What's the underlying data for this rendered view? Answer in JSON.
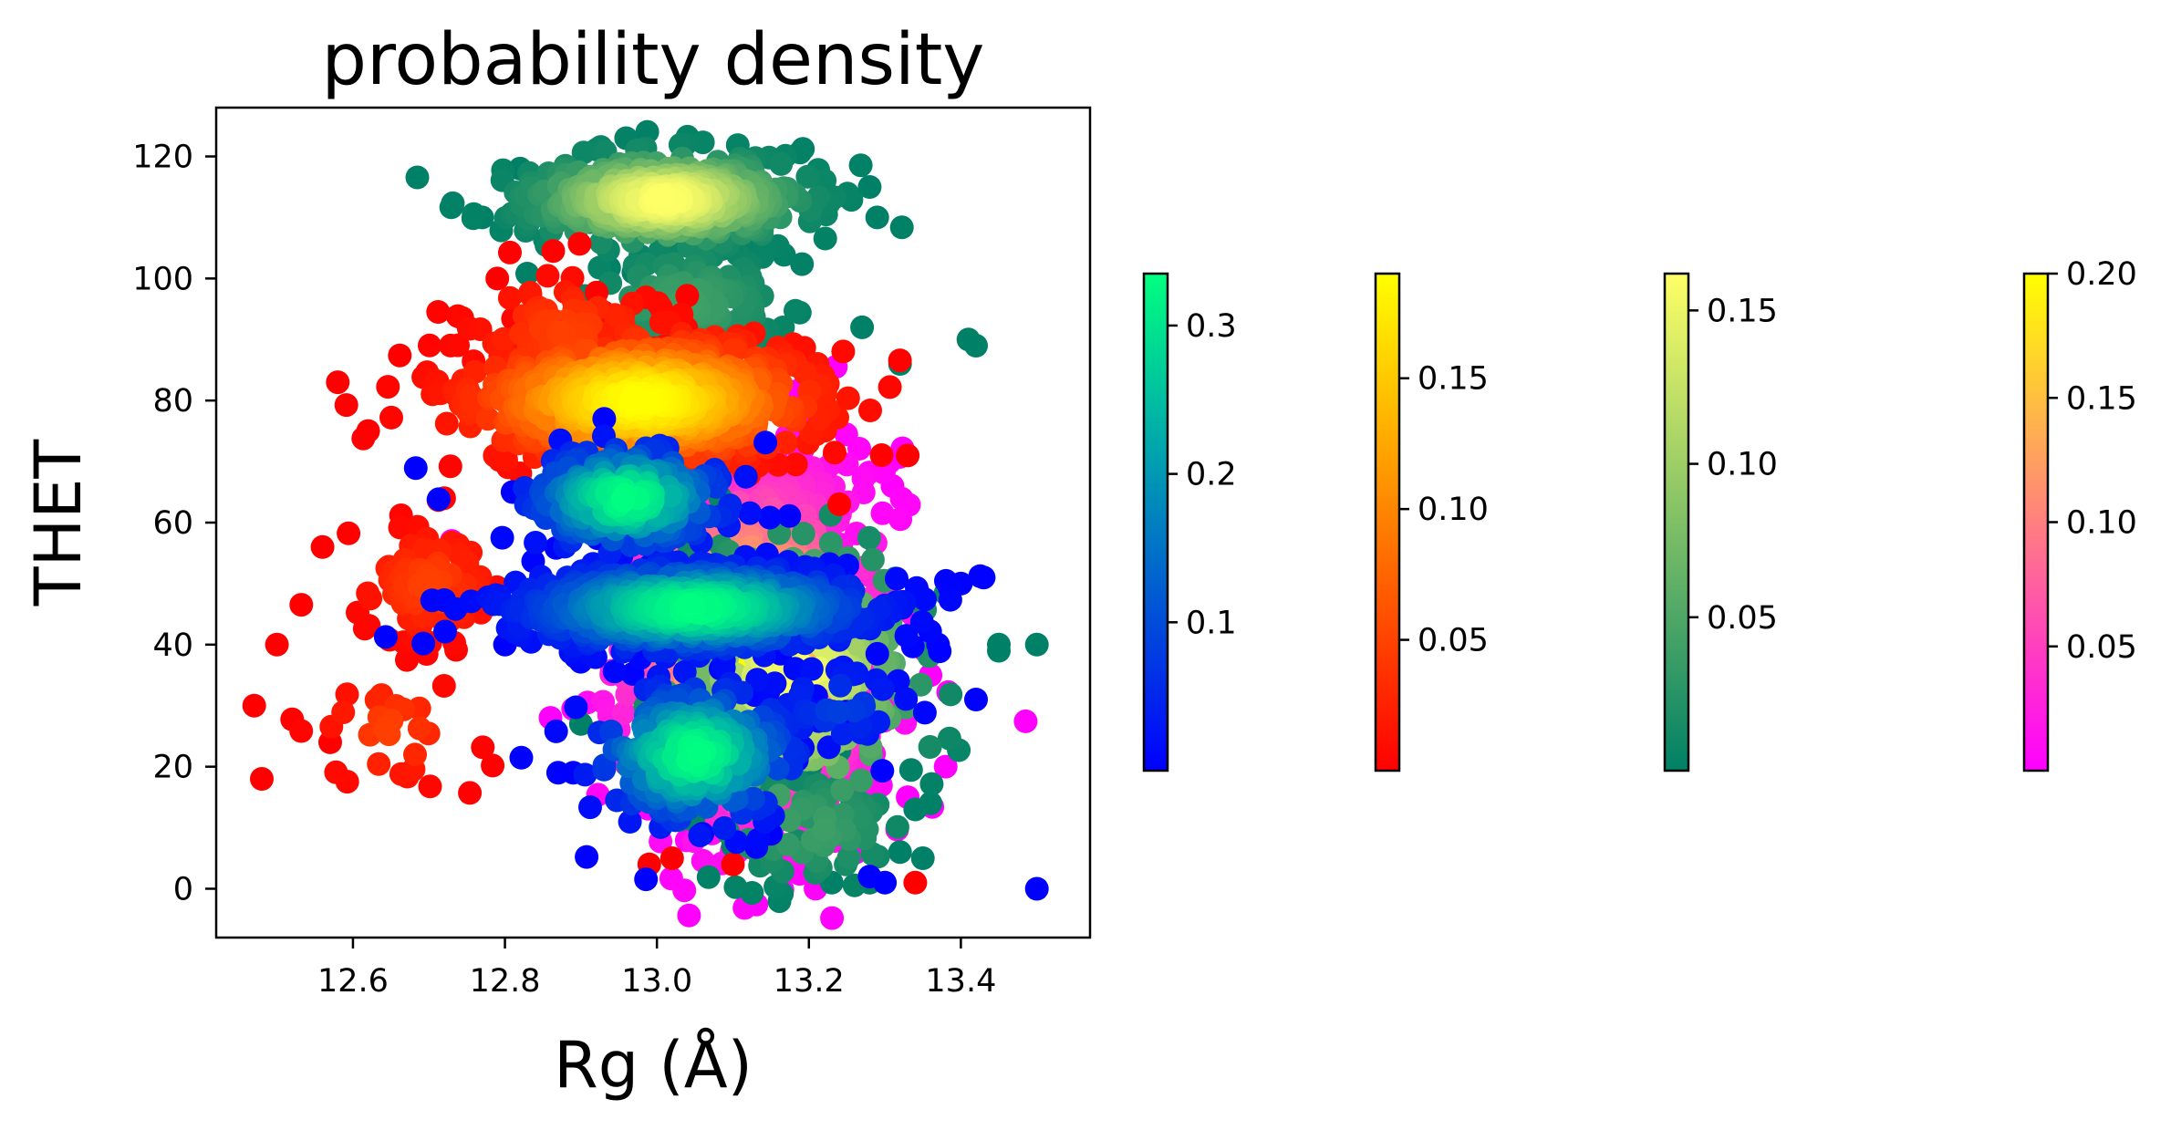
{
  "chart_data": {
    "type": "scatter",
    "title": "probability density",
    "xlabel": "Rg (Å)",
    "ylabel": "THET",
    "xlim": [
      12.42,
      13.57
    ],
    "ylim": [
      -8,
      128
    ],
    "xticks": [
      12.6,
      12.8,
      13.0,
      13.2,
      13.4
    ],
    "xtick_labels": [
      "12.6",
      "12.8",
      "13.0",
      "13.2",
      "13.4"
    ],
    "yticks": [
      0,
      20,
      40,
      60,
      80,
      100,
      120
    ],
    "ytick_labels": [
      "0",
      "20",
      "40",
      "60",
      "80",
      "100",
      "120"
    ],
    "grid": false,
    "series": [
      {
        "colormap": "spring",
        "colors": [
          "#ff00ff",
          "#ffff00"
        ],
        "clusters": [
          {
            "cx": 13.12,
            "cy": 40,
            "sx": 0.09,
            "sy": 15,
            "n": 520
          },
          {
            "cx": 13.15,
            "cy": 62,
            "sx": 0.07,
            "sy": 7,
            "n": 170
          },
          {
            "cx": 13.16,
            "cy": 20,
            "sx": 0.07,
            "sy": 8,
            "n": 170
          }
        ],
        "outliers": [
          [
            12.73,
            57
          ],
          [
            12.86,
            28
          ],
          [
            13.28,
            1
          ],
          [
            13.31,
            66
          ],
          [
            13.38,
            20
          ],
          [
            13.36,
            35
          ],
          [
            13.33,
            15
          ],
          [
            13.22,
            8
          ]
        ]
      },
      {
        "colormap": "summer",
        "colors": [
          "#008066",
          "#ffff66"
        ],
        "clusters": [
          {
            "cx": 13.01,
            "cy": 113,
            "sx": 0.09,
            "sy": 3.6,
            "n": 480
          },
          {
            "cx": 13.04,
            "cy": 96,
            "sx": 0.07,
            "sy": 5,
            "n": 150
          },
          {
            "cx": 13.18,
            "cy": 35,
            "sx": 0.09,
            "sy": 12,
            "n": 240
          },
          {
            "cx": 13.2,
            "cy": 10,
            "sx": 0.07,
            "sy": 5,
            "n": 70
          }
        ],
        "outliers": [
          [
            12.77,
            110
          ],
          [
            12.82,
            118
          ],
          [
            13.28,
            115
          ],
          [
            13.29,
            110
          ],
          [
            13.27,
            92
          ],
          [
            13.32,
            86
          ],
          [
            13.41,
            90
          ],
          [
            13.42,
            89
          ],
          [
            13.45,
            40
          ],
          [
            13.5,
            40
          ],
          [
            13.32,
            6
          ],
          [
            13.35,
            5
          ],
          [
            13.28,
            1
          ],
          [
            13.23,
            1
          ],
          [
            13.34,
            13
          ],
          [
            13.36,
            14
          ],
          [
            13.1,
            7
          ],
          [
            12.9,
            27
          ],
          [
            13.45,
            39
          ]
        ]
      },
      {
        "colormap": "autumn",
        "colors": [
          "#ff0000",
          "#ffff00"
        ],
        "clusters": [
          {
            "cx": 12.98,
            "cy": 80,
            "sx": 0.12,
            "sy": 5.5,
            "n": 650
          },
          {
            "cx": 12.88,
            "cy": 91,
            "sx": 0.07,
            "sy": 5,
            "n": 90
          },
          {
            "cx": 12.7,
            "cy": 50,
            "sx": 0.05,
            "sy": 5,
            "n": 90
          },
          {
            "cx": 12.65,
            "cy": 26,
            "sx": 0.05,
            "sy": 5,
            "n": 30
          }
        ],
        "outliers": [
          [
            12.47,
            30
          ],
          [
            12.48,
            18
          ],
          [
            12.5,
            40
          ],
          [
            12.57,
            24
          ],
          [
            12.56,
            56
          ],
          [
            12.58,
            83
          ],
          [
            12.79,
            100
          ],
          [
            12.99,
            4
          ],
          [
            13.02,
            5
          ],
          [
            13.1,
            4
          ],
          [
            13.34,
            1
          ],
          [
            13.33,
            71
          ],
          [
            13.24,
            63
          ],
          [
            12.72,
            64
          ],
          [
            12.62,
            75
          ]
        ]
      },
      {
        "colormap": "winter",
        "colors": [
          "#0000ff",
          "#00ff80"
        ],
        "clusters": [
          {
            "cx": 13.05,
            "cy": 46,
            "sx": 0.12,
            "sy": 3.6,
            "n": 650
          },
          {
            "cx": 12.96,
            "cy": 64,
            "sx": 0.07,
            "sy": 4.5,
            "n": 230
          },
          {
            "cx": 13.05,
            "cy": 22,
            "sx": 0.07,
            "sy": 6,
            "n": 240
          },
          {
            "cx": 13.24,
            "cy": 30,
            "sx": 0.05,
            "sy": 4,
            "n": 40
          }
        ],
        "outliers": [
          [
            13.5,
            0
          ],
          [
            13.42,
            31
          ],
          [
            13.43,
            51
          ],
          [
            13.4,
            50
          ],
          [
            12.89,
            19
          ],
          [
            12.87,
            19
          ],
          [
            13.28,
            2
          ],
          [
            13.3,
            1
          ],
          [
            13.06,
            9
          ],
          [
            13.15,
            9
          ],
          [
            12.8,
            40
          ],
          [
            12.81,
            65
          ],
          [
            13.37,
            40
          ]
        ]
      }
    ],
    "colorbars": [
      {
        "colormap": "winter",
        "colors": [
          "#0000ff",
          "#00ff80"
        ],
        "min": 0.0,
        "max": 0.335,
        "ticks": [
          0.1,
          0.2,
          0.3
        ],
        "tick_labels": [
          "0.1",
          "0.2",
          "0.3"
        ]
      },
      {
        "colormap": "autumn",
        "colors": [
          "#ff0000",
          "#ffff00"
        ],
        "min": 0.0,
        "max": 0.19,
        "ticks": [
          0.05,
          0.1,
          0.15
        ],
        "tick_labels": [
          "0.05",
          "0.10",
          "0.15"
        ]
      },
      {
        "colormap": "summer",
        "colors": [
          "#008066",
          "#ffff66"
        ],
        "min": 0.0,
        "max": 0.162,
        "ticks": [
          0.05,
          0.1,
          0.15
        ],
        "tick_labels": [
          "0.05",
          "0.10",
          "0.15"
        ]
      },
      {
        "colormap": "spring",
        "colors": [
          "#ff00ff",
          "#ffff00"
        ],
        "min": 0.0,
        "max": 0.2,
        "ticks": [
          0.05,
          0.1,
          0.15,
          0.2
        ],
        "tick_labels": [
          "0.05",
          "0.10",
          "0.15",
          "0.20"
        ]
      }
    ]
  }
}
